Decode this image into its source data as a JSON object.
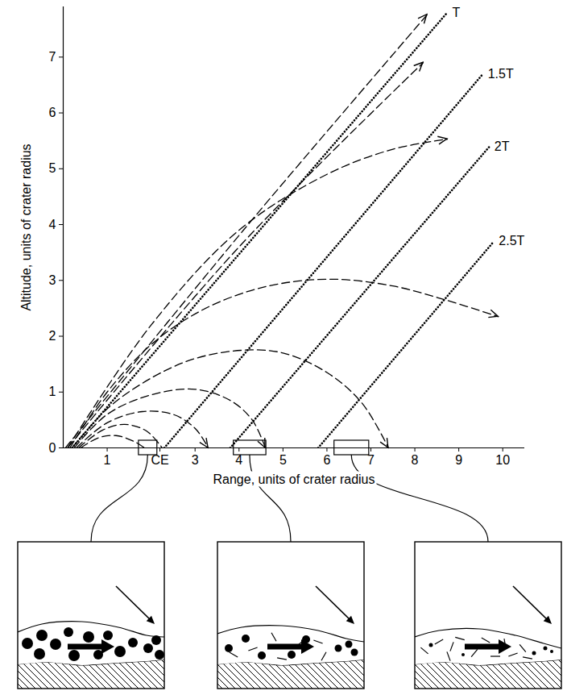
{
  "chart_data": {
    "type": "line",
    "xlabel": "Range, units of crater radius",
    "ylabel": "Altitude, units of crater radius",
    "xlim": [
      0,
      10.5
    ],
    "ylim": [
      0,
      7.9
    ],
    "xticks": [
      1,
      {
        "value": 2.2,
        "label": "CE"
      },
      3,
      4,
      5,
      6,
      7,
      8,
      9,
      10
    ],
    "yticks": [
      0,
      1,
      2,
      3,
      4,
      5,
      6,
      7
    ],
    "grid": false,
    "series": [
      {
        "line_style": "dashed",
        "marker": "arrow",
        "values": [
          [
            0.05,
            0
          ],
          [
            4.1,
            3.9
          ],
          [
            8.28,
            7.76
          ]
        ]
      },
      {
        "line_style": "dashed",
        "marker": "arrow",
        "values": [
          [
            0.1,
            0
          ],
          [
            4.0,
            3.6
          ],
          [
            8.19,
            6.9
          ]
        ]
      },
      {
        "line_style": "dashed",
        "marker": "arrow",
        "values": [
          [
            0.1,
            0
          ],
          [
            2.0,
            2.2
          ],
          [
            4.0,
            3.9
          ],
          [
            6.0,
            4.9
          ],
          [
            7.5,
            5.35
          ],
          [
            8.74,
            5.53
          ]
        ]
      },
      {
        "line_style": "dashed",
        "marker": "arrow",
        "values": [
          [
            0.15,
            0
          ],
          [
            1.0,
            1.0
          ],
          [
            2.0,
            1.85
          ],
          [
            3.0,
            2.4
          ],
          [
            4.0,
            2.75
          ],
          [
            5.0,
            2.95
          ],
          [
            6.2,
            3.02
          ],
          [
            7.5,
            2.9
          ],
          [
            8.7,
            2.65
          ],
          [
            9.9,
            2.35
          ]
        ]
      },
      {
        "line_style": "dashed",
        "marker": "arrow",
        "values": [
          [
            0.2,
            0
          ],
          [
            1.0,
            0.7
          ],
          [
            2.0,
            1.25
          ],
          [
            3.0,
            1.6
          ],
          [
            4.1,
            1.75
          ],
          [
            5.0,
            1.7
          ],
          [
            6.0,
            1.35
          ],
          [
            6.8,
            0.8
          ],
          [
            7.4,
            0
          ]
        ]
      },
      {
        "line_style": "dashed",
        "marker": "arrow",
        "values": [
          [
            0.25,
            0
          ],
          [
            1.0,
            0.6
          ],
          [
            2.0,
            0.95
          ],
          [
            3.0,
            1.05
          ],
          [
            3.8,
            0.85
          ],
          [
            4.3,
            0.5
          ],
          [
            4.6,
            0
          ]
        ]
      },
      {
        "line_style": "dashed",
        "marker": "arrow",
        "values": [
          [
            0.3,
            0
          ],
          [
            1.0,
            0.45
          ],
          [
            1.8,
            0.65
          ],
          [
            2.5,
            0.6
          ],
          [
            3.0,
            0.35
          ],
          [
            3.3,
            0
          ]
        ]
      },
      {
        "line_style": "dashed",
        "values": [
          [
            0.35,
            0
          ],
          [
            0.9,
            0.32
          ],
          [
            1.4,
            0.42
          ],
          [
            1.9,
            0.3
          ],
          [
            2.25,
            0
          ]
        ]
      },
      {
        "line_style": "dashed",
        "values": [
          [
            0.4,
            0
          ],
          [
            0.8,
            0.18
          ],
          [
            1.2,
            0.22
          ],
          [
            1.6,
            0.12
          ],
          [
            1.85,
            0
          ]
        ]
      },
      {
        "name": "T",
        "line_style": "dotted",
        "values": [
          [
            0.2,
            0
          ],
          [
            8.74,
            7.8
          ]
        ]
      },
      {
        "name": "1.5T",
        "line_style": "dotted",
        "values": [
          [
            2.3,
            0
          ],
          [
            9.55,
            6.7
          ]
        ]
      },
      {
        "name": "2T",
        "line_style": "dotted",
        "values": [
          [
            3.8,
            0
          ],
          [
            9.7,
            5.4
          ]
        ]
      },
      {
        "name": "2.5T",
        "line_style": "dotted",
        "values": [
          [
            5.8,
            0
          ],
          [
            9.8,
            3.7
          ]
        ]
      }
    ],
    "highlight_ranges": [
      [
        1.72,
        2.14
      ],
      [
        3.88,
        4.62
      ],
      [
        6.17,
        6.96
      ]
    ]
  }
}
